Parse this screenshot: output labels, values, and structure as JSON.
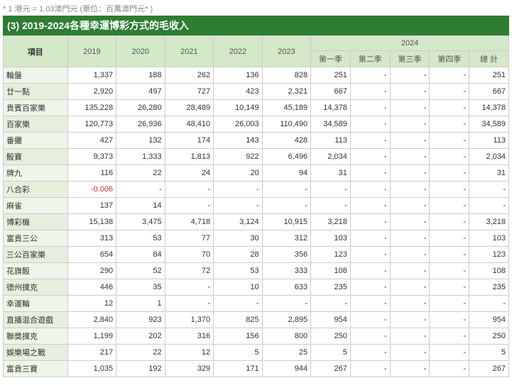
{
  "note": "* 1 港元 = 1.03澳門元 (單位：百萬澳門元* )",
  "title": "(3) 2019-2024各種幸運博彩方式的毛收入",
  "headers": {
    "item": "項目",
    "y2019": "2019",
    "y2020": "2020",
    "y2021": "2021",
    "y2022": "2022",
    "y2023": "2023",
    "y2024": "2024",
    "q1": "第一季",
    "q2": "第二季",
    "q3": "第三季",
    "q4": "第四季",
    "total": "總 計"
  },
  "rows": [
    {
      "label": "輪盤",
      "y2019": "1,337",
      "y2020": "188",
      "y2021": "262",
      "y2022": "136",
      "y2023": "828",
      "q1": "251",
      "q2": "-",
      "q3": "-",
      "q4": "-",
      "total": "251"
    },
    {
      "label": "廿一點",
      "y2019": "2,920",
      "y2020": "497",
      "y2021": "727",
      "y2022": "423",
      "y2023": "2,321",
      "q1": "667",
      "q2": "-",
      "q3": "-",
      "q4": "-",
      "total": "667"
    },
    {
      "label": "貴賓百家樂",
      "y2019": "135,228",
      "y2020": "26,280",
      "y2021": "28,489",
      "y2022": "10,149",
      "y2023": "45,189",
      "q1": "14,378",
      "q2": "-",
      "q3": "-",
      "q4": "-",
      "total": "14,378"
    },
    {
      "label": "百家樂",
      "y2019": "120,773",
      "y2020": "26,936",
      "y2021": "48,410",
      "y2022": "26,003",
      "y2023": "110,490",
      "q1": "34,589",
      "q2": "-",
      "q3": "-",
      "q4": "-",
      "total": "34,589"
    },
    {
      "label": "番攤",
      "y2019": "427",
      "y2020": "132",
      "y2021": "174",
      "y2022": "143",
      "y2023": "428",
      "q1": "113",
      "q2": "-",
      "q3": "-",
      "q4": "-",
      "total": "113"
    },
    {
      "label": "骰寶",
      "y2019": "9,373",
      "y2020": "1,333",
      "y2021": "1,813",
      "y2022": "922",
      "y2023": "6,496",
      "q1": "2,034",
      "q2": "-",
      "q3": "-",
      "q4": "-",
      "total": "2,034"
    },
    {
      "label": "牌九",
      "y2019": "116",
      "y2020": "22",
      "y2021": "24",
      "y2022": "20",
      "y2023": "94",
      "q1": "31",
      "q2": "-",
      "q3": "-",
      "q4": "-",
      "total": "31"
    },
    {
      "label": "八合彩",
      "y2019": "-0.006",
      "neg2019": true,
      "y2020": "-",
      "y2021": "-",
      "y2022": "-",
      "y2023": "-",
      "q1": "-",
      "q2": "-",
      "q3": "-",
      "q4": "-",
      "total": "-"
    },
    {
      "label": "麻雀",
      "y2019": "137",
      "y2020": "14",
      "y2021": "-",
      "y2022": "-",
      "y2023": "-",
      "q1": "-",
      "q2": "-",
      "q3": "-",
      "q4": "-",
      "total": "-"
    },
    {
      "label": "博彩機",
      "y2019": "15,138",
      "y2020": "3,475",
      "y2021": "4,718",
      "y2022": "3,124",
      "y2023": "10,915",
      "q1": "3,218",
      "q2": "-",
      "q3": "-",
      "q4": "-",
      "total": "3,218"
    },
    {
      "label": "富貴三公",
      "y2019": "313",
      "y2020": "53",
      "y2021": "77",
      "y2022": "30",
      "y2023": "312",
      "q1": "103",
      "q2": "-",
      "q3": "-",
      "q4": "-",
      "total": "103"
    },
    {
      "label": "三公百家樂",
      "y2019": "654",
      "y2020": "84",
      "y2021": "70",
      "y2022": "28",
      "y2023": "356",
      "q1": "123",
      "q2": "-",
      "q3": "-",
      "q4": "-",
      "total": "123"
    },
    {
      "label": "花旗骰",
      "y2019": "290",
      "y2020": "52",
      "y2021": "72",
      "y2022": "53",
      "y2023": "333",
      "q1": "108",
      "q2": "-",
      "q3": "-",
      "q4": "-",
      "total": "108"
    },
    {
      "label": "德州撲克",
      "y2019": "446",
      "y2020": "35",
      "y2021": "-",
      "y2022": "10",
      "y2023": "633",
      "q1": "235",
      "q2": "-",
      "q3": "-",
      "q4": "-",
      "total": "235"
    },
    {
      "label": "幸運輪",
      "y2019": "12",
      "y2020": "1",
      "y2021": "-",
      "y2022": "-",
      "y2023": "-",
      "q1": "-",
      "q2": "-",
      "q3": "-",
      "q4": "-",
      "total": "-"
    },
    {
      "label": "直播混合遊戲",
      "y2019": "2,840",
      "y2020": "923",
      "y2021": "1,370",
      "y2022": "825",
      "y2023": "2,895",
      "q1": "954",
      "q2": "-",
      "q3": "-",
      "q4": "-",
      "total": "954"
    },
    {
      "label": "聯獎撲克",
      "y2019": "1,199",
      "y2020": "202",
      "y2021": "316",
      "y2022": "156",
      "y2023": "800",
      "q1": "250",
      "q2": "-",
      "q3": "-",
      "q4": "-",
      "total": "250"
    },
    {
      "label": "娛樂場之戰",
      "y2019": "217",
      "y2020": "22",
      "y2021": "12",
      "y2022": "5",
      "y2023": "25",
      "q1": "5",
      "q2": "-",
      "q3": "-",
      "q4": "-",
      "total": "5"
    },
    {
      "label": "富貴三寶",
      "y2019": "1,035",
      "y2020": "192",
      "y2021": "329",
      "y2022": "171",
      "y2023": "944",
      "q1": "267",
      "q2": "-",
      "q3": "-",
      "q4": "-",
      "total": "267"
    }
  ]
}
